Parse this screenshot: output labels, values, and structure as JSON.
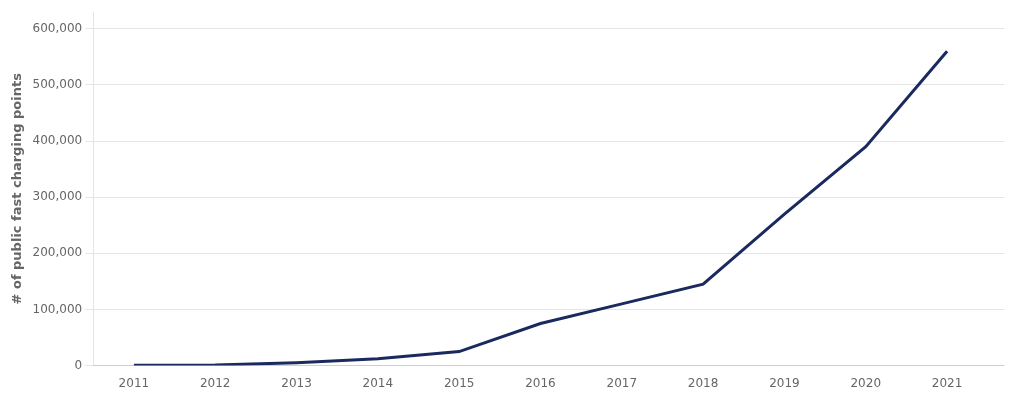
{
  "chart_data": {
    "type": "line",
    "x": [
      2011,
      2012,
      2013,
      2014,
      2015,
      2016,
      2017,
      2018,
      2019,
      2020,
      2021
    ],
    "values": [
      500,
      1000,
      5000,
      12000,
      25000,
      75000,
      110000,
      145000,
      270000,
      390000,
      560000
    ],
    "color": "#1a2a5e",
    "ylabel": "# of public fast charging points",
    "xlim": [
      2010.5,
      2021.7
    ],
    "xticks": [
      2011,
      2012,
      2013,
      2014,
      2015,
      2016,
      2017,
      2018,
      2019,
      2020,
      2021
    ],
    "ylim": [
      0,
      630000
    ],
    "yticks": [
      0,
      {
        "value": 100000,
        "label": "100,000"
      },
      {
        "value": 200000,
        "label": "200,000"
      },
      {
        "value": 300000,
        "label": "300,000"
      },
      {
        "value": 400000,
        "label": "400,000"
      },
      {
        "value": 500000,
        "label": "500,000"
      },
      {
        "value": 600000,
        "label": "600,000"
      }
    ],
    "grid": "y"
  }
}
